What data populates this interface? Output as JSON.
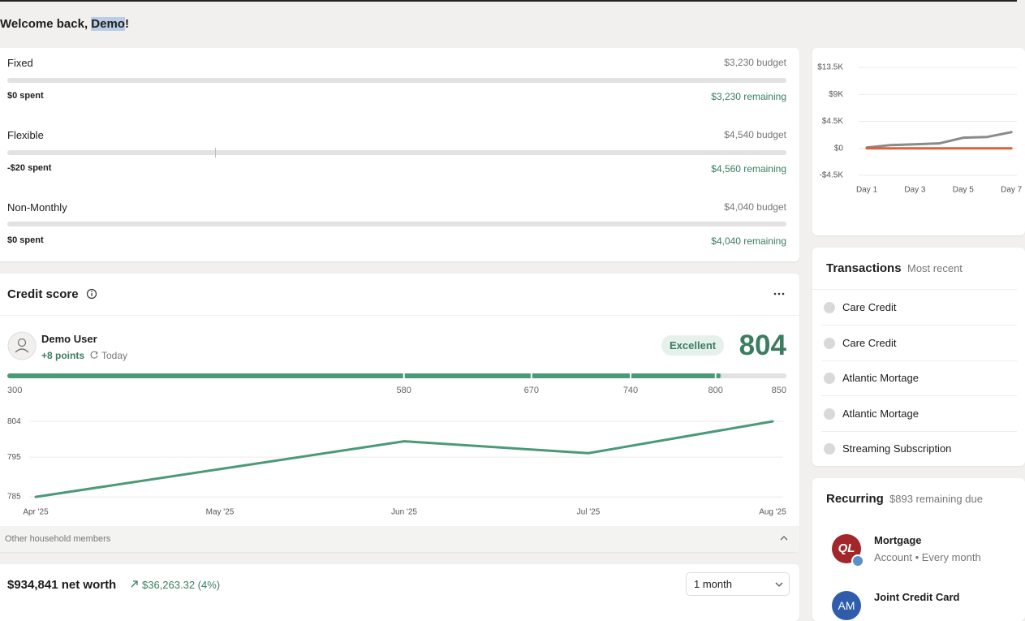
{
  "header": {
    "greeting": "Welcome back, ",
    "name": "Demo",
    "suffix": "!"
  },
  "budget": {
    "rows": [
      {
        "label": "Fixed",
        "budget": "$3,230 budget",
        "spent": "$0 spent",
        "remaining": "$3,230 remaining"
      },
      {
        "label": "Flexible",
        "budget": "$4,540 budget",
        "spent": "-$20 spent",
        "remaining": "$4,560 remaining"
      },
      {
        "label": "Non-Monthly",
        "budget": "$4,040 budget",
        "spent": "$0 spent",
        "remaining": "$4,040 remaining"
      }
    ]
  },
  "credit": {
    "title": "Credit score",
    "user": "Demo User",
    "points": "+8 points",
    "updated": "Today",
    "rating": "Excellent",
    "score": 804,
    "scale": {
      "xlim": [
        300,
        850
      ],
      "xticks": [
        300,
        580,
        670,
        740,
        800,
        850
      ]
    },
    "chart": {
      "type": "line",
      "categories": [
        "Apr '25",
        "May '25",
        "Jun '25",
        "Jul '25",
        "Aug '25"
      ],
      "values": [
        785,
        792,
        799,
        796,
        804
      ],
      "color": "#4a9a78",
      "ylim": [
        784,
        807.5
      ],
      "yticks": [
        785,
        795,
        804
      ],
      "grid": true
    },
    "footer": "Other household members"
  },
  "net_worth": {
    "title": "$934,841 net worth",
    "change": "$36,263.32 (4%)",
    "period": "1 month"
  },
  "cashflow": {
    "chart": {
      "type": "line",
      "categories": [
        "Day 1",
        null,
        "Day 3",
        null,
        "Day 5",
        null,
        "Day 7"
      ],
      "series": [
        {
          "color": "#8a8a8a",
          "values": [
            136,
            545,
            680,
            820,
            1770,
            1900,
            2700
          ]
        },
        {
          "color": "#e0603a",
          "values": [
            0,
            0,
            0,
            0,
            0,
            0,
            0
          ]
        }
      ],
      "ylim": [
        -6000,
        15000
      ],
      "yticks": [
        {
          "value": 13500,
          "label": "$13.5K"
        },
        {
          "value": 9000,
          "label": "$9K"
        },
        {
          "value": 4500,
          "label": "$4.5K"
        },
        {
          "value": 0,
          "label": "$0"
        },
        {
          "value": -4500,
          "label": "-$4.5K"
        }
      ],
      "grid": true
    }
  },
  "transactions": {
    "title": "Transactions",
    "subtitle": "Most recent",
    "items": [
      "Care Credit",
      "Care Credit",
      "Atlantic Mortage",
      "Atlantic Mortage",
      "Streaming Subscription"
    ]
  },
  "recurring": {
    "title": "Recurring",
    "subtitle": "$893 remaining due",
    "items": [
      {
        "logo": "QL",
        "name": "Mortgage",
        "detail": "Account • Every month"
      },
      {
        "logo": "AM",
        "name": "Joint Credit Card"
      }
    ]
  }
}
